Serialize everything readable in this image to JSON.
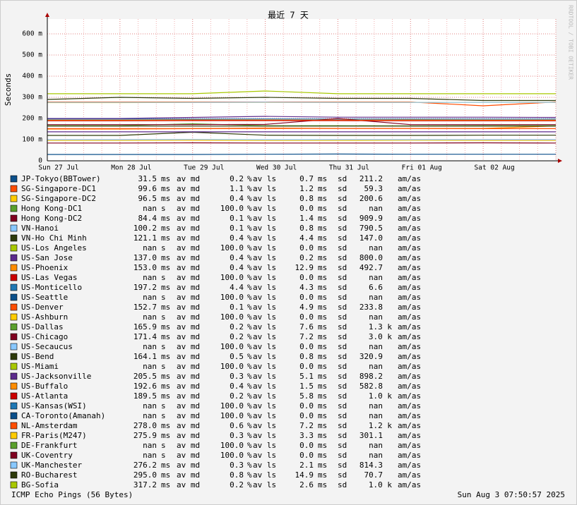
{
  "chart_data": {
    "type": "line",
    "title": "最近 7 天",
    "y_label": "Seconds",
    "watermark": "RRDTOOL / TOBI OETIKER",
    "footer_left": "ICMP Echo Pings (56 Bytes)",
    "footer_right": "Sun Aug  3 07:50:57 2025",
    "grid": true,
    "categories": [
      "Sun 27 Jul",
      "Mon 28 Jul",
      "Tue 29 Jul",
      "Wed 30 Jul",
      "Thu 31 Jul",
      "Fri 01 Aug",
      "Sat 02 Aug",
      null
    ],
    "ylim": [
      0,
      0.67
    ],
    "yticks": [
      0,
      {
        "value": 0.1,
        "label": "100 m"
      },
      {
        "value": 0.2,
        "label": "200 m"
      },
      {
        "value": 0.3,
        "label": "300 m"
      },
      {
        "value": 0.4,
        "label": "400 m"
      },
      {
        "value": 0.5,
        "label": "500 m"
      },
      {
        "value": 0.6,
        "label": "600 m"
      }
    ],
    "legend_columns": [
      "av md",
      "av ls",
      "sd",
      "am/as"
    ],
    "series": [
      {
        "name": "JP-Tokyo(BBTower)",
        "color": "#0b4f8a",
        "values": [
          0.03,
          0.03,
          0.03,
          0.031,
          0.032,
          0.031,
          0.031,
          0.031
        ],
        "av_md": "31.5",
        "av_md_unit": "ms",
        "av_ls": "0.2",
        "av_ls_unit": "%",
        "sd": "0.7",
        "sd_unit": "ms",
        "am_as": "211.2"
      },
      {
        "name": "SG-Singapore-DC1",
        "color": "#ff4d00",
        "values": [
          0.1,
          0.1,
          0.1,
          0.099,
          0.1,
          0.1,
          0.1,
          0.1
        ],
        "av_md": "99.6",
        "av_md_unit": "ms",
        "av_ls": "1.1",
        "av_ls_unit": "%",
        "sd": "1.2",
        "sd_unit": "ms",
        "am_as": "59.3"
      },
      {
        "name": "SG-Singapore-DC2",
        "color": "#ffcc00",
        "values": [
          0.096,
          0.096,
          0.097,
          0.096,
          0.096,
          0.097,
          0.096,
          0.096
        ],
        "av_md": "96.5",
        "av_md_unit": "ms",
        "av_ls": "0.4",
        "av_ls_unit": "%",
        "sd": "0.8",
        "sd_unit": "ms",
        "am_as": "200.6"
      },
      {
        "name": "Hong Kong-DC1",
        "color": "#5aa02c",
        "values": [
          null,
          null,
          null,
          null,
          null,
          null,
          null,
          null
        ],
        "av_md": "nan",
        "av_md_unit": "s",
        "av_ls": "100.0",
        "av_ls_unit": "%",
        "sd": "0.0",
        "sd_unit": "ms",
        "am_as": "nan"
      },
      {
        "name": "Hong Kong-DC2",
        "color": "#800020",
        "values": [
          0.084,
          0.084,
          0.085,
          0.084,
          0.084,
          0.084,
          0.085,
          0.084
        ],
        "av_md": "84.4",
        "av_md_unit": "ms",
        "av_ls": "0.1",
        "av_ls_unit": "%",
        "sd": "1.4",
        "sd_unit": "ms",
        "am_as": "909.9"
      },
      {
        "name": "VN-Hanoi",
        "color": "#88c8ff",
        "values": [
          0.1,
          0.1,
          0.101,
          0.1,
          0.1,
          0.1,
          0.1,
          0.1
        ],
        "av_md": "100.2",
        "av_md_unit": "ms",
        "av_ls": "0.1",
        "av_ls_unit": "%",
        "sd": "0.8",
        "sd_unit": "ms",
        "am_as": "790.5"
      },
      {
        "name": "VN-Ho Chi Minh",
        "color": "#2d3a0a",
        "values": [
          0.12,
          0.12,
          0.135,
          0.121,
          0.12,
          0.12,
          0.121,
          0.121
        ],
        "av_md": "121.1",
        "av_md_unit": "ms",
        "av_ls": "0.4",
        "av_ls_unit": "%",
        "sd": "4.4",
        "sd_unit": "ms",
        "am_as": "147.0"
      },
      {
        "name": "US-Los Angeles",
        "color": "#a8c800",
        "values": [
          null,
          null,
          null,
          null,
          null,
          null,
          null,
          null
        ],
        "av_md": "nan",
        "av_md_unit": "s",
        "av_ls": "100.0",
        "av_ls_unit": "%",
        "sd": "0.0",
        "sd_unit": "ms",
        "am_as": "nan"
      },
      {
        "name": "US-San Jose",
        "color": "#5b2a8c",
        "values": [
          0.137,
          0.137,
          0.137,
          0.137,
          0.137,
          0.137,
          0.137,
          0.137
        ],
        "av_md": "137.0",
        "av_md_unit": "ms",
        "av_ls": "0.4",
        "av_ls_unit": "%",
        "sd": "0.2",
        "sd_unit": "ms",
        "am_as": "800.0"
      },
      {
        "name": "US-Phoenix",
        "color": "#ff8c00",
        "values": [
          0.15,
          0.15,
          0.152,
          0.155,
          0.153,
          0.153,
          0.153,
          0.165
        ],
        "av_md": "153.0",
        "av_md_unit": "ms",
        "av_ls": "0.4",
        "av_ls_unit": "%",
        "sd": "12.9",
        "sd_unit": "ms",
        "am_as": "492.7"
      },
      {
        "name": "US-Las Vegas",
        "color": "#cc0000",
        "values": [
          null,
          null,
          null,
          null,
          null,
          null,
          null,
          null
        ],
        "av_md": "nan",
        "av_md_unit": "s",
        "av_ls": "100.0",
        "av_ls_unit": "%",
        "sd": "0.0",
        "sd_unit": "ms",
        "am_as": "nan"
      },
      {
        "name": "US-Monticello",
        "color": "#1f78b4",
        "values": [
          0.197,
          0.197,
          0.197,
          0.198,
          0.197,
          0.197,
          0.197,
          0.197
        ],
        "av_md": "197.2",
        "av_md_unit": "ms",
        "av_ls": "4.4",
        "av_ls_unit": "%",
        "sd": "4.3",
        "sd_unit": "ms",
        "am_as": "6.6"
      },
      {
        "name": "US-Seattle",
        "color": "#0b4f8a",
        "values": [
          null,
          null,
          null,
          null,
          null,
          null,
          null,
          null
        ],
        "av_md": "nan",
        "av_md_unit": "s",
        "av_ls": "100.0",
        "av_ls_unit": "%",
        "sd": "0.0",
        "sd_unit": "ms",
        "am_as": "nan"
      },
      {
        "name": "US-Denver",
        "color": "#ff4d00",
        "values": [
          0.152,
          0.152,
          0.152,
          0.153,
          0.153,
          0.153,
          0.152,
          0.152
        ],
        "av_md": "152.7",
        "av_md_unit": "ms",
        "av_ls": "0.1",
        "av_ls_unit": "%",
        "sd": "4.9",
        "sd_unit": "ms",
        "am_as": "233.8"
      },
      {
        "name": "US-Ashburn",
        "color": "#ffcc00",
        "values": [
          null,
          null,
          null,
          null,
          null,
          null,
          null,
          null
        ],
        "av_md": "nan",
        "av_md_unit": "s",
        "av_ls": "100.0",
        "av_ls_unit": "%",
        "sd": "0.0",
        "sd_unit": "ms",
        "am_as": "nan"
      },
      {
        "name": "US-Dallas",
        "color": "#5aa02c",
        "values": [
          0.166,
          0.166,
          0.175,
          0.166,
          0.166,
          0.165,
          0.166,
          0.166
        ],
        "av_md": "165.9",
        "av_md_unit": "ms",
        "av_ls": "0.2",
        "av_ls_unit": "%",
        "sd": "7.6",
        "sd_unit": "ms",
        "am_as": "1.3 k"
      },
      {
        "name": "US-Chicago",
        "color": "#800020",
        "values": [
          0.171,
          0.171,
          0.171,
          0.172,
          0.2,
          0.171,
          0.171,
          0.171
        ],
        "av_md": "171.4",
        "av_md_unit": "ms",
        "av_ls": "0.2",
        "av_ls_unit": "%",
        "sd": "7.2",
        "sd_unit": "ms",
        "am_as": "3.0 k"
      },
      {
        "name": "US-Secaucus",
        "color": "#88c8ff",
        "values": [
          null,
          null,
          null,
          null,
          null,
          null,
          null,
          null
        ],
        "av_md": "nan",
        "av_md_unit": "s",
        "av_ls": "100.0",
        "av_ls_unit": "%",
        "sd": "0.0",
        "sd_unit": "ms",
        "am_as": "nan"
      },
      {
        "name": "US-Bend",
        "color": "#2d3a0a",
        "values": [
          0.164,
          0.164,
          0.164,
          0.164,
          0.164,
          0.164,
          0.164,
          0.164
        ],
        "av_md": "164.1",
        "av_md_unit": "ms",
        "av_ls": "0.5",
        "av_ls_unit": "%",
        "sd": "0.8",
        "sd_unit": "ms",
        "am_as": "320.9"
      },
      {
        "name": "US-Miami",
        "color": "#a8c800",
        "values": [
          null,
          null,
          null,
          null,
          null,
          null,
          null,
          null
        ],
        "av_md": "nan",
        "av_md_unit": "s",
        "av_ls": "100.0",
        "av_ls_unit": "%",
        "sd": "0.0",
        "sd_unit": "ms",
        "am_as": "nan"
      },
      {
        "name": "US-Jacksonville",
        "color": "#5b2a8c",
        "values": [
          0.2,
          0.2,
          0.205,
          0.21,
          0.206,
          0.206,
          0.206,
          0.205
        ],
        "av_md": "205.5",
        "av_md_unit": "ms",
        "av_ls": "0.3",
        "av_ls_unit": "%",
        "sd": "5.1",
        "sd_unit": "ms",
        "am_as": "898.2"
      },
      {
        "name": "US-Buffalo",
        "color": "#ff8c00",
        "values": [
          0.192,
          0.192,
          0.193,
          0.193,
          0.192,
          0.193,
          0.192,
          0.192
        ],
        "av_md": "192.6",
        "av_md_unit": "ms",
        "av_ls": "0.4",
        "av_ls_unit": "%",
        "sd": "1.5",
        "sd_unit": "ms",
        "am_as": "582.8"
      },
      {
        "name": "US-Atlanta",
        "color": "#cc0000",
        "values": [
          0.189,
          0.189,
          0.19,
          0.19,
          0.19,
          0.189,
          0.189,
          0.189
        ],
        "av_md": "189.5",
        "av_md_unit": "ms",
        "av_ls": "0.2",
        "av_ls_unit": "%",
        "sd": "5.8",
        "sd_unit": "ms",
        "am_as": "1.0 k"
      },
      {
        "name": "US-Kansas(WSI)",
        "color": "#1f78b4",
        "values": [
          null,
          null,
          null,
          null,
          null,
          null,
          null,
          null
        ],
        "av_md": "nan",
        "av_md_unit": "s",
        "av_ls": "100.0",
        "av_ls_unit": "%",
        "sd": "0.0",
        "sd_unit": "ms",
        "am_as": "nan"
      },
      {
        "name": "CA-Toronto(Amanah)",
        "color": "#0b4f8a",
        "values": [
          null,
          null,
          null,
          null,
          null,
          null,
          null,
          null
        ],
        "av_md": "nan",
        "av_md_unit": "s",
        "av_ls": "100.0",
        "av_ls_unit": "%",
        "sd": "0.0",
        "sd_unit": "ms",
        "am_as": "nan"
      },
      {
        "name": "NL-Amsterdam",
        "color": "#ff4d00",
        "values": [
          0.278,
          0.278,
          0.278,
          0.278,
          0.278,
          0.278,
          0.26,
          0.278
        ],
        "av_md": "278.0",
        "av_md_unit": "ms",
        "av_ls": "0.6",
        "av_ls_unit": "%",
        "sd": "7.2",
        "sd_unit": "ms",
        "am_as": "1.2 k"
      },
      {
        "name": "FR-Paris(M247)",
        "color": "#ffcc00",
        "values": [
          0.275,
          0.275,
          0.276,
          0.276,
          0.276,
          0.276,
          0.276,
          0.276
        ],
        "av_md": "275.9",
        "av_md_unit": "ms",
        "av_ls": "0.3",
        "av_ls_unit": "%",
        "sd": "3.3",
        "sd_unit": "ms",
        "am_as": "301.1"
      },
      {
        "name": "DE-Frankfurt",
        "color": "#5aa02c",
        "values": [
          null,
          null,
          null,
          null,
          null,
          null,
          null,
          null
        ],
        "av_md": "nan",
        "av_md_unit": "s",
        "av_ls": "100.0",
        "av_ls_unit": "%",
        "sd": "0.0",
        "sd_unit": "ms",
        "am_as": "nan"
      },
      {
        "name": "UK-Coventry",
        "color": "#800020",
        "values": [
          null,
          null,
          null,
          null,
          null,
          null,
          null,
          null
        ],
        "av_md": "nan",
        "av_md_unit": "s",
        "av_ls": "100.0",
        "av_ls_unit": "%",
        "sd": "0.0",
        "sd_unit": "ms",
        "am_as": "nan"
      },
      {
        "name": "UK-Manchester",
        "color": "#88c8ff",
        "values": [
          0.276,
          0.276,
          0.276,
          0.277,
          0.276,
          0.276,
          0.276,
          0.276
        ],
        "av_md": "276.2",
        "av_md_unit": "ms",
        "av_ls": "0.3",
        "av_ls_unit": "%",
        "sd": "2.1",
        "sd_unit": "ms",
        "am_as": "814.3"
      },
      {
        "name": "RO-Bucharest",
        "color": "#2d3a0a",
        "values": [
          0.29,
          0.3,
          0.295,
          0.3,
          0.295,
          0.295,
          0.285,
          0.285
        ],
        "av_md": "295.0",
        "av_md_unit": "ms",
        "av_ls": "0.8",
        "av_ls_unit": "%",
        "sd": "14.9",
        "sd_unit": "ms",
        "am_as": "70.7"
      },
      {
        "name": "BG-Sofia",
        "color": "#a8c800",
        "values": [
          0.317,
          0.317,
          0.317,
          0.33,
          0.317,
          0.317,
          0.317,
          0.317
        ],
        "av_md": "317.2",
        "av_md_unit": "ms",
        "av_ls": "0.2",
        "av_ls_unit": "%",
        "sd": "2.6",
        "sd_unit": "ms",
        "am_as": "1.0 k"
      }
    ]
  }
}
